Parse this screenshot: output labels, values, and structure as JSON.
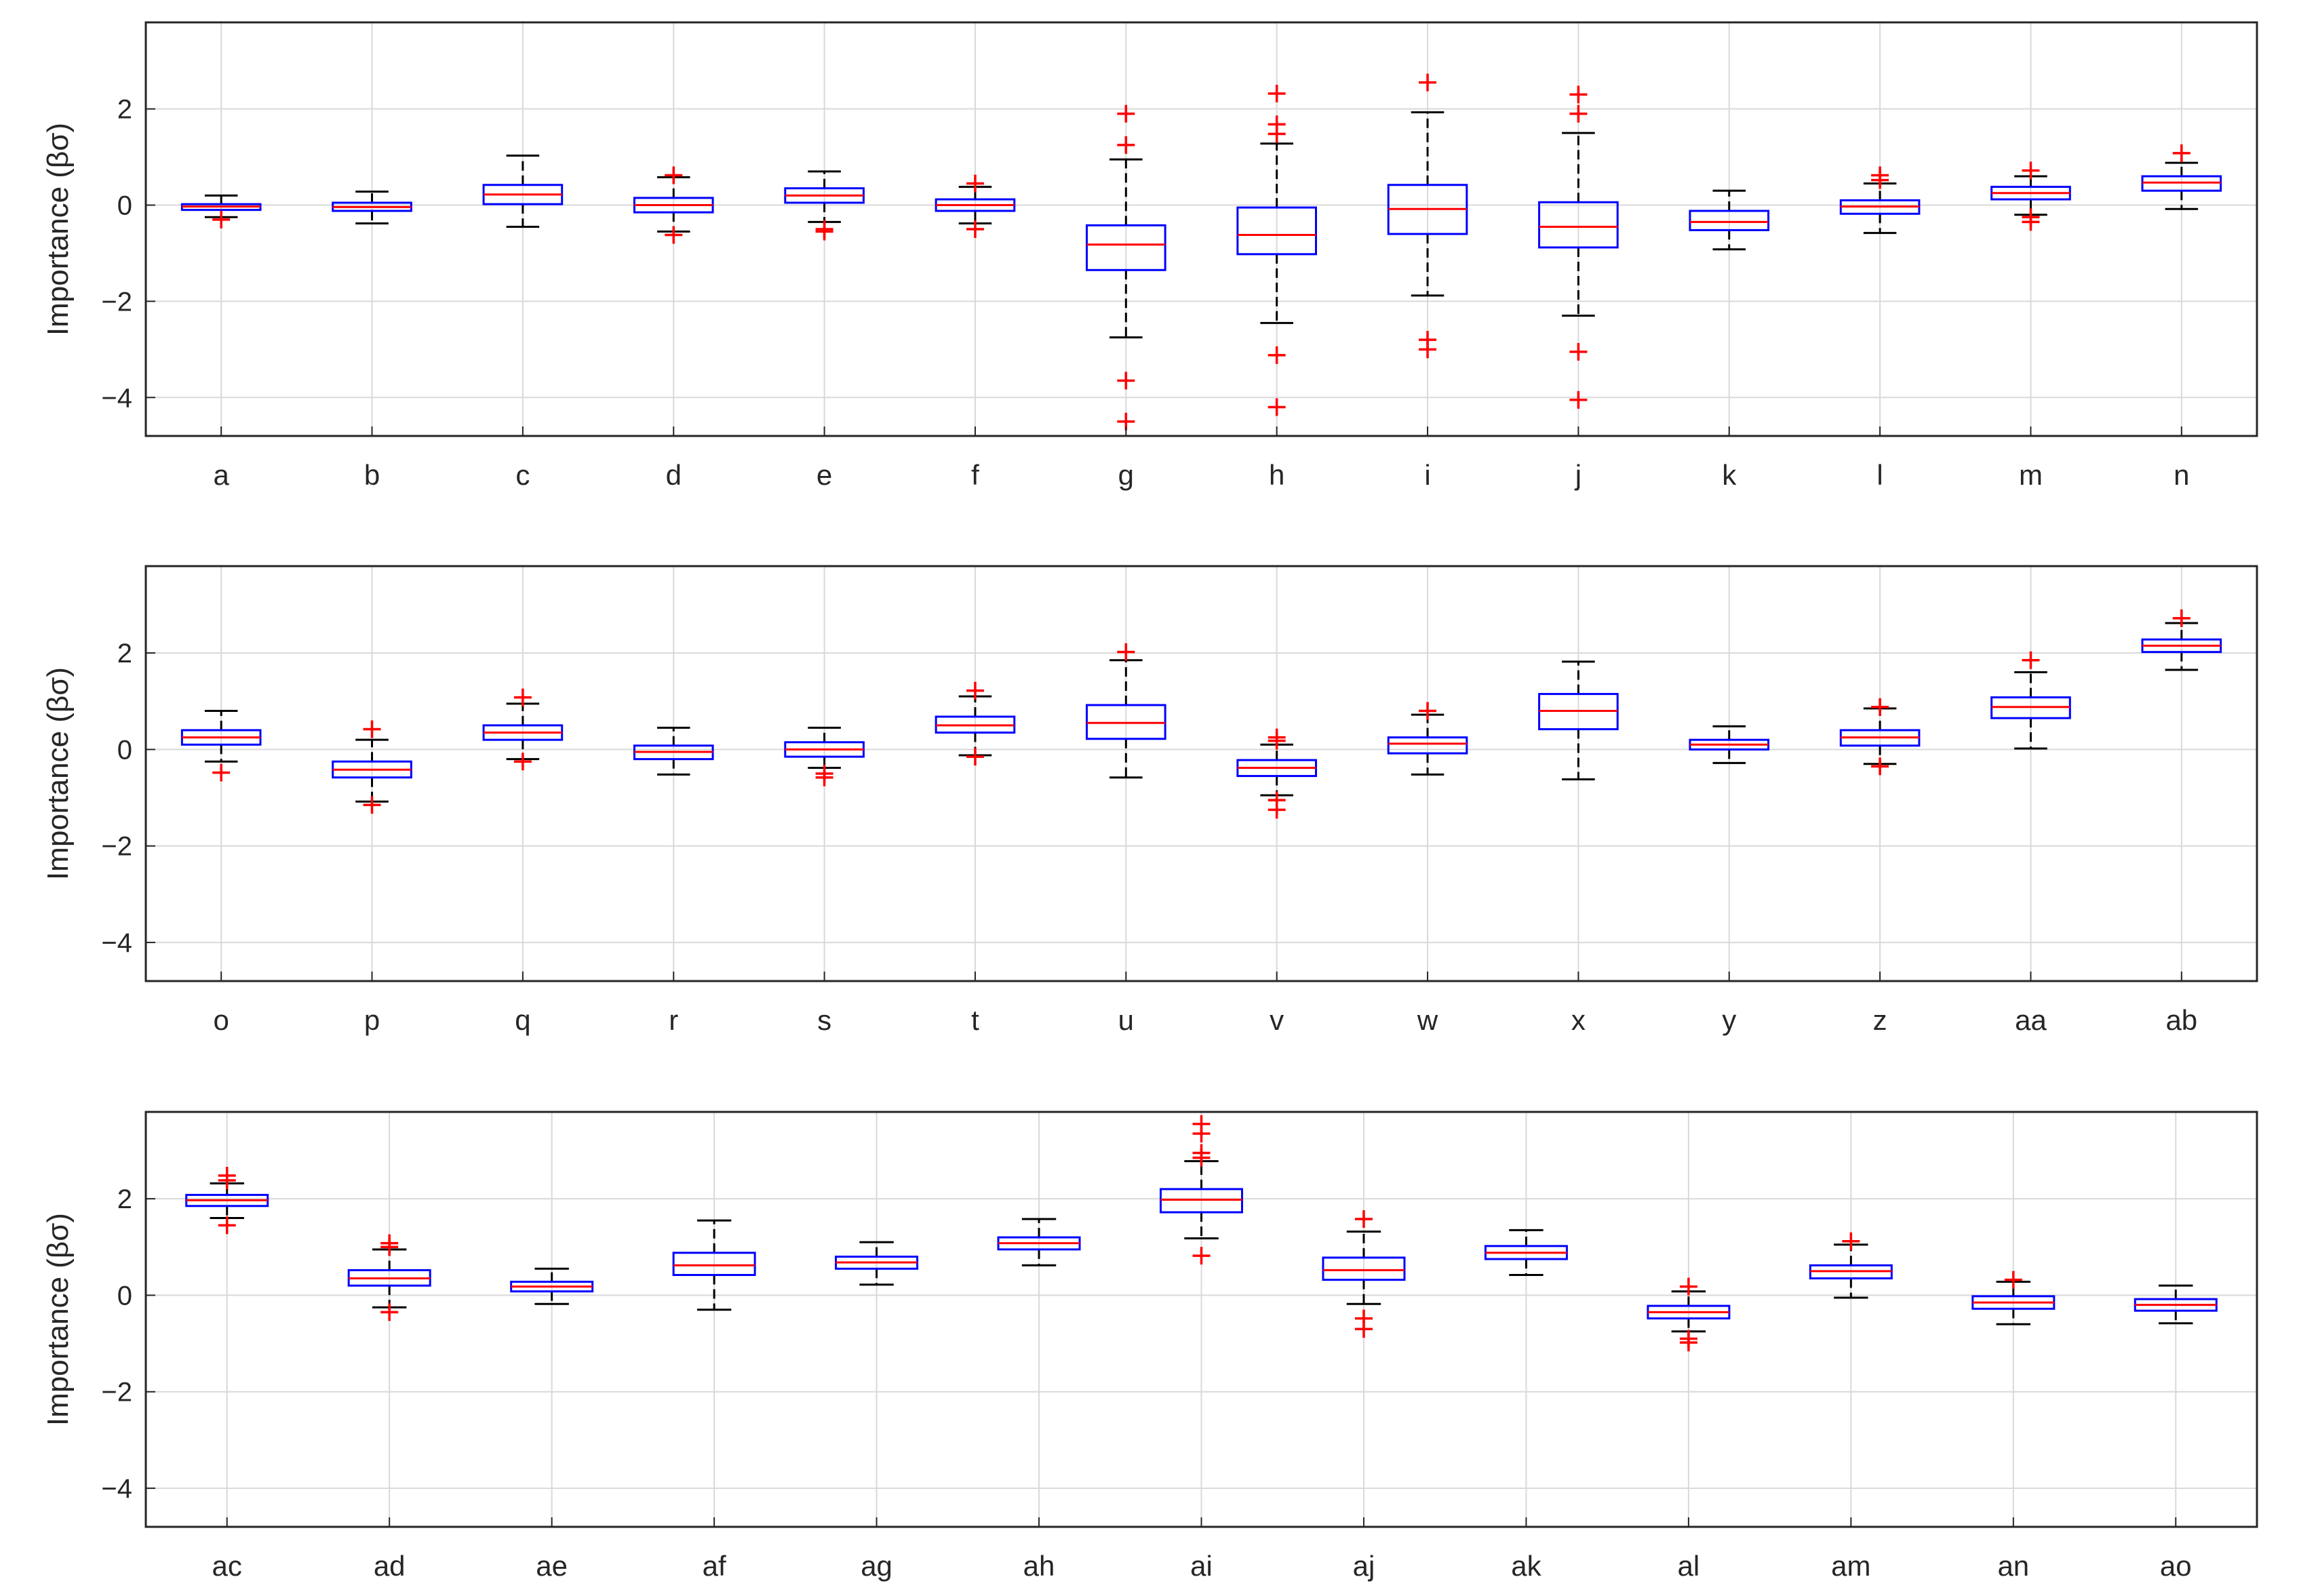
{
  "figure": {
    "background": "#ffffff",
    "box_color": "#0000ff",
    "median_color": "#ff0000",
    "whisker_color": "#000000",
    "outlier_color": "#ff0000",
    "grid_color": "#d9d9d9"
  },
  "chart_data": [
    {
      "type": "box",
      "ylabel": "Importance (βσ)",
      "ylim": [
        -4.8,
        3.8
      ],
      "yticks": [
        2,
        0,
        -2,
        -4
      ],
      "ytick_labels": [
        "2",
        "0",
        "−2",
        "−4"
      ],
      "grid": true,
      "categories": [
        "a",
        "b",
        "c",
        "d",
        "e",
        "f",
        "g",
        "h",
        "i",
        "j",
        "k",
        "l",
        "m",
        "n"
      ],
      "boxes": [
        {
          "q1": -0.1,
          "median": -0.03,
          "q3": 0.02,
          "whisker_low": -0.25,
          "whisker_high": 0.2,
          "outliers": [
            -0.3
          ]
        },
        {
          "q1": -0.12,
          "median": -0.04,
          "q3": 0.05,
          "whisker_low": -0.38,
          "whisker_high": 0.28,
          "outliers": []
        },
        {
          "q1": 0.02,
          "median": 0.22,
          "q3": 0.42,
          "whisker_low": -0.45,
          "whisker_high": 1.03,
          "outliers": []
        },
        {
          "q1": -0.15,
          "median": 0.0,
          "q3": 0.15,
          "whisker_low": -0.55,
          "whisker_high": 0.58,
          "outliers": [
            0.62,
            -0.62
          ]
        },
        {
          "q1": 0.05,
          "median": 0.2,
          "q3": 0.35,
          "whisker_low": -0.35,
          "whisker_high": 0.7,
          "outliers": [
            -0.5,
            -0.55
          ]
        },
        {
          "q1": -0.12,
          "median": 0.0,
          "q3": 0.12,
          "whisker_low": -0.38,
          "whisker_high": 0.38,
          "outliers": [
            0.45,
            -0.5
          ]
        },
        {
          "q1": -1.35,
          "median": -0.82,
          "q3": -0.42,
          "whisker_low": -2.75,
          "whisker_high": 0.95,
          "outliers": [
            1.9,
            1.25,
            -3.65,
            -4.5
          ]
        },
        {
          "q1": -1.02,
          "median": -0.62,
          "q3": -0.05,
          "whisker_low": -2.45,
          "whisker_high": 1.28,
          "outliers": [
            2.32,
            1.68,
            1.48,
            -3.12,
            -4.2
          ]
        },
        {
          "q1": -0.6,
          "median": -0.08,
          "q3": 0.42,
          "whisker_low": -1.88,
          "whisker_high": 1.93,
          "outliers": [
            2.55,
            -2.8,
            -3.0
          ]
        },
        {
          "q1": -0.88,
          "median": -0.45,
          "q3": 0.06,
          "whisker_low": -2.3,
          "whisker_high": 1.5,
          "outliers": [
            2.3,
            1.9,
            -3.05,
            -4.05
          ]
        },
        {
          "q1": -0.52,
          "median": -0.35,
          "q3": -0.12,
          "whisker_low": -0.92,
          "whisker_high": 0.3,
          "outliers": []
        },
        {
          "q1": -0.18,
          "median": -0.03,
          "q3": 0.1,
          "whisker_low": -0.58,
          "whisker_high": 0.45,
          "outliers": [
            0.62,
            0.52
          ]
        },
        {
          "q1": 0.12,
          "median": 0.25,
          "q3": 0.38,
          "whisker_low": -0.2,
          "whisker_high": 0.6,
          "outliers": [
            0.72,
            -0.25,
            -0.35
          ]
        },
        {
          "q1": 0.3,
          "median": 0.47,
          "q3": 0.6,
          "whisker_low": -0.08,
          "whisker_high": 0.88,
          "outliers": [
            1.08
          ]
        }
      ]
    },
    {
      "type": "box",
      "ylabel": "Importance (βσ)",
      "ylim": [
        -4.8,
        3.8
      ],
      "yticks": [
        2,
        0,
        -2,
        -4
      ],
      "ytick_labels": [
        "2",
        "0",
        "−2",
        "−4"
      ],
      "grid": true,
      "categories": [
        "o",
        "p",
        "q",
        "r",
        "s",
        "t",
        "u",
        "v",
        "w",
        "x",
        "y",
        "z",
        "aa",
        "ab"
      ],
      "boxes": [
        {
          "q1": 0.1,
          "median": 0.25,
          "q3": 0.4,
          "whisker_low": -0.25,
          "whisker_high": 0.8,
          "outliers": [
            -0.48
          ]
        },
        {
          "q1": -0.58,
          "median": -0.42,
          "q3": -0.25,
          "whisker_low": -1.08,
          "whisker_high": 0.2,
          "outliers": [
            0.42,
            -1.15
          ]
        },
        {
          "q1": 0.2,
          "median": 0.35,
          "q3": 0.5,
          "whisker_low": -0.2,
          "whisker_high": 0.95,
          "outliers": [
            1.08,
            -0.25
          ]
        },
        {
          "q1": -0.2,
          "median": -0.05,
          "q3": 0.08,
          "whisker_low": -0.52,
          "whisker_high": 0.45,
          "outliers": []
        },
        {
          "q1": -0.15,
          "median": 0.0,
          "q3": 0.15,
          "whisker_low": -0.38,
          "whisker_high": 0.45,
          "outliers": [
            -0.5,
            -0.58
          ]
        },
        {
          "q1": 0.35,
          "median": 0.5,
          "q3": 0.68,
          "whisker_low": -0.12,
          "whisker_high": 1.1,
          "outliers": [
            1.22,
            -0.15
          ]
        },
        {
          "q1": 0.22,
          "median": 0.55,
          "q3": 0.92,
          "whisker_low": -0.58,
          "whisker_high": 1.85,
          "outliers": [
            2.02
          ]
        },
        {
          "q1": -0.55,
          "median": -0.38,
          "q3": -0.22,
          "whisker_low": -0.95,
          "whisker_high": 0.1,
          "outliers": [
            0.25,
            0.18,
            -1.05,
            -1.25
          ]
        },
        {
          "q1": -0.08,
          "median": 0.12,
          "q3": 0.25,
          "whisker_low": -0.52,
          "whisker_high": 0.72,
          "outliers": [
            0.8
          ]
        },
        {
          "q1": 0.42,
          "median": 0.8,
          "q3": 1.15,
          "whisker_low": -0.62,
          "whisker_high": 1.82,
          "outliers": []
        },
        {
          "q1": 0.0,
          "median": 0.1,
          "q3": 0.2,
          "whisker_low": -0.28,
          "whisker_high": 0.48,
          "outliers": []
        },
        {
          "q1": 0.08,
          "median": 0.25,
          "q3": 0.4,
          "whisker_low": -0.3,
          "whisker_high": 0.85,
          "outliers": [
            0.88,
            -0.35
          ]
        },
        {
          "q1": 0.65,
          "median": 0.88,
          "q3": 1.08,
          "whisker_low": 0.02,
          "whisker_high": 1.6,
          "outliers": [
            1.85
          ]
        },
        {
          "q1": 2.02,
          "median": 2.15,
          "q3": 2.28,
          "whisker_low": 1.65,
          "whisker_high": 2.62,
          "outliers": [
            2.72
          ]
        }
      ]
    },
    {
      "type": "box",
      "ylabel": "Importance (βσ)",
      "ylim": [
        -4.8,
        3.8
      ],
      "yticks": [
        2,
        0,
        -2,
        -4
      ],
      "ytick_labels": [
        "2",
        "0",
        "−2",
        "−4"
      ],
      "grid": true,
      "categories": [
        "ac",
        "ad",
        "ae",
        "af",
        "ag",
        "ah",
        "ai",
        "aj",
        "ak",
        "al",
        "am",
        "an",
        "ao"
      ],
      "boxes": [
        {
          "q1": 1.85,
          "median": 1.97,
          "q3": 2.08,
          "whisker_low": 1.6,
          "whisker_high": 2.32,
          "outliers": [
            2.48,
            2.38,
            1.45
          ]
        },
        {
          "q1": 0.2,
          "median": 0.35,
          "q3": 0.52,
          "whisker_low": -0.25,
          "whisker_high": 0.95,
          "outliers": [
            1.08,
            1.0,
            -0.35
          ]
        },
        {
          "q1": 0.08,
          "median": 0.18,
          "q3": 0.28,
          "whisker_low": -0.18,
          "whisker_high": 0.55,
          "outliers": []
        },
        {
          "q1": 0.42,
          "median": 0.62,
          "q3": 0.88,
          "whisker_low": -0.3,
          "whisker_high": 1.55,
          "outliers": []
        },
        {
          "q1": 0.55,
          "median": 0.68,
          "q3": 0.8,
          "whisker_low": 0.22,
          "whisker_high": 1.1,
          "outliers": []
        },
        {
          "q1": 0.95,
          "median": 1.08,
          "q3": 1.2,
          "whisker_low": 0.62,
          "whisker_high": 1.58,
          "outliers": []
        },
        {
          "q1": 1.72,
          "median": 1.98,
          "q3": 2.2,
          "whisker_low": 1.18,
          "whisker_high": 2.78,
          "outliers": [
            3.55,
            3.35,
            2.95,
            2.85,
            0.82
          ]
        },
        {
          "q1": 0.32,
          "median": 0.52,
          "q3": 0.78,
          "whisker_low": -0.18,
          "whisker_high": 1.32,
          "outliers": [
            1.58,
            -0.48,
            -0.7
          ]
        },
        {
          "q1": 0.75,
          "median": 0.88,
          "q3": 1.02,
          "whisker_low": 0.42,
          "whisker_high": 1.35,
          "outliers": []
        },
        {
          "q1": -0.48,
          "median": -0.35,
          "q3": -0.22,
          "whisker_low": -0.75,
          "whisker_high": 0.08,
          "outliers": [
            0.18,
            -0.9,
            -0.98
          ]
        },
        {
          "q1": 0.35,
          "median": 0.5,
          "q3": 0.62,
          "whisker_low": -0.05,
          "whisker_high": 1.05,
          "outliers": [
            1.12
          ]
        },
        {
          "q1": -0.28,
          "median": -0.15,
          "q3": -0.02,
          "whisker_low": -0.6,
          "whisker_high": 0.28,
          "outliers": [
            0.32
          ]
        },
        {
          "q1": -0.32,
          "median": -0.2,
          "q3": -0.08,
          "whisker_low": -0.58,
          "whisker_high": 0.2,
          "outliers": []
        }
      ]
    }
  ]
}
